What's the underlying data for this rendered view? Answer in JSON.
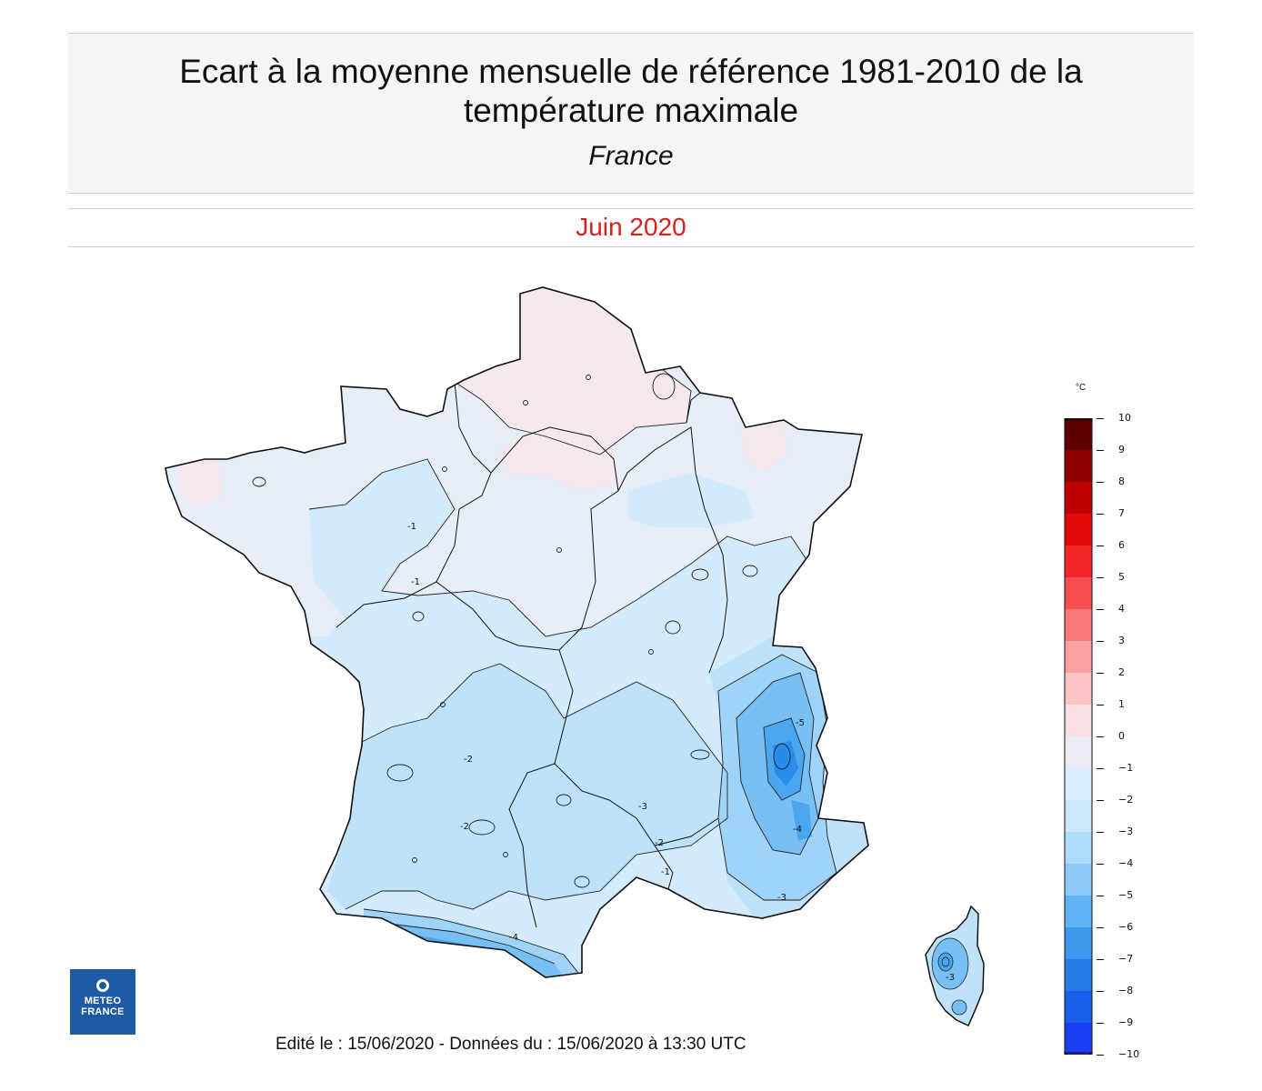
{
  "header": {
    "title": "Ecart à la moyenne mensuelle de référence 1981-2010 de la température maximale",
    "region": "France",
    "period": "Juin 2020"
  },
  "legend": {
    "unit": "°C",
    "labels": [
      "10",
      "9",
      "8",
      "7",
      "6",
      "5",
      "4",
      "3",
      "2",
      "1",
      "0",
      "−1",
      "−2",
      "−3",
      "−4",
      "−5",
      "−6",
      "−7",
      "−8",
      "−9",
      "−10"
    ],
    "colors": [
      "#3d0000",
      "#7a0000",
      "#a80000",
      "#d40000",
      "#ee1212",
      "#f53a3a",
      "#f86464",
      "#fa8c8c",
      "#fcb4b4",
      "#fdd8d8",
      "#f5e8ee",
      "#e4eefa",
      "#d4ebfb",
      "#bfe2fb",
      "#9fd3f8",
      "#77c0f5",
      "#4ba6f0",
      "#2a8ce9",
      "#1a6ee6",
      "#1a4fee",
      "#1a2ff2"
    ]
  },
  "map": {
    "contour_labels": [
      "-1",
      "-1",
      "-1",
      "-2",
      "-2",
      "-2",
      "-3",
      "-3",
      "-4",
      "-5",
      "-3",
      "-4"
    ]
  },
  "logo": {
    "line1": "METEO",
    "line2": "FRANCE"
  },
  "footer": {
    "text": "Edité le : 15/06/2020 - Données du : 15/06/2020 à 13:30 UTC"
  }
}
